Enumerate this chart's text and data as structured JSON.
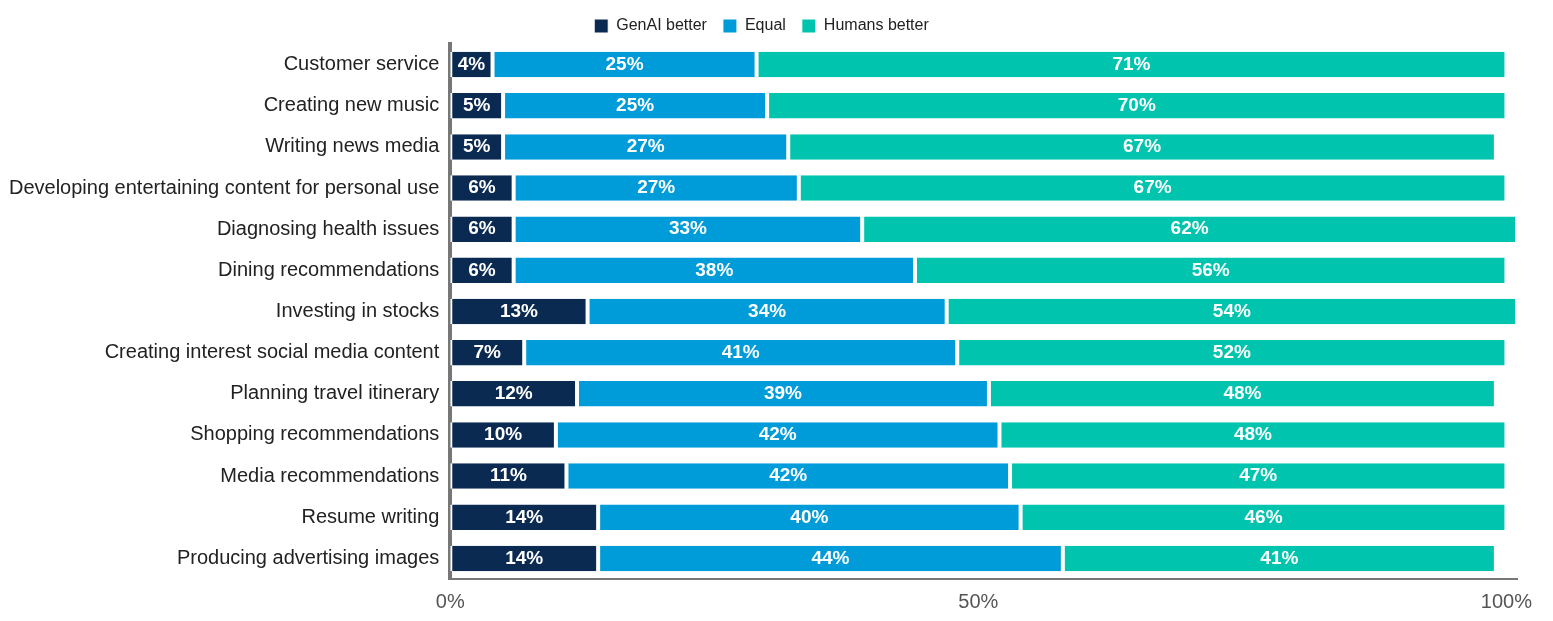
{
  "chart_data": {
    "type": "bar",
    "orientation": "horizontal",
    "stacked": true,
    "categories": [
      "Customer service",
      "Creating new music",
      "Writing news media",
      "Developing entertaining content for personal use",
      "Diagnosing health issues",
      "Dining recommendations",
      "Investing in stocks",
      "Creating interest social media content",
      "Planning travel itinerary",
      "Shopping recommendations",
      "Media recommendations",
      "Resume writing",
      "Producing advertising images"
    ],
    "series": [
      {
        "name": "GenAI better",
        "color": "#0b2a52",
        "values": [
          4,
          5,
          5,
          6,
          6,
          6,
          13,
          7,
          12,
          10,
          11,
          14,
          14
        ],
        "value_labels": [
          "4%",
          "5%",
          "5%",
          "6%",
          "6%",
          "6%",
          "13%",
          "7%",
          "12%",
          "10%",
          "11%",
          "14%",
          "14%"
        ]
      },
      {
        "name": "Equal",
        "color": "#009bd9",
        "values": [
          25,
          25,
          27,
          27,
          33,
          38,
          34,
          41,
          39,
          42,
          42,
          40,
          44
        ],
        "value_labels": [
          "25%",
          "25%",
          "27%",
          "27%",
          "33%",
          "38%",
          "34%",
          "41%",
          "39%",
          "42%",
          "42%",
          "40%",
          "44%"
        ]
      },
      {
        "name": "Humans better",
        "color": "#00c4ae",
        "values": [
          71,
          70,
          67,
          67,
          62,
          56,
          54,
          52,
          48,
          48,
          47,
          46,
          41
        ],
        "value_labels": [
          "71%",
          "70%",
          "67%",
          "67%",
          "62%",
          "56%",
          "54%",
          "52%",
          "48%",
          "48%",
          "47%",
          "46%",
          "41%"
        ]
      }
    ],
    "xlim": [
      0,
      101
    ],
    "xticks": [
      {
        "value": 0,
        "label": "0%"
      },
      {
        "value": 50,
        "label": "50%"
      },
      {
        "value": 100,
        "label": "100%"
      }
    ],
    "legend": "top",
    "grid": false
  }
}
